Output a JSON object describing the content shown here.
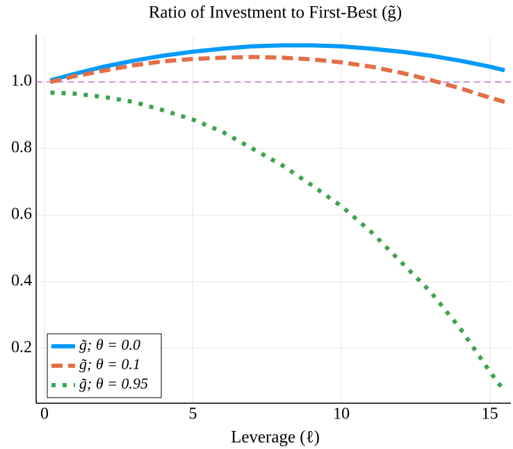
{
  "chart_data": {
    "type": "line",
    "title": "Ratio of Investment to First-Best (g̃)",
    "x_label": "Leverage (ℓ)",
    "x": [
      0.2,
      1,
      2,
      3,
      4,
      5,
      6,
      7,
      8,
      9,
      10,
      11,
      12,
      13,
      14,
      15,
      15.5
    ],
    "series": [
      {
        "name": "g̃; θ = 0.0",
        "color": "#009af9",
        "style": "solid",
        "values": [
          1.005,
          1.024,
          1.046,
          1.064,
          1.079,
          1.091,
          1.1,
          1.107,
          1.11,
          1.11,
          1.107,
          1.1,
          1.091,
          1.079,
          1.064,
          1.046,
          1.035
        ]
      },
      {
        "name": "g̃; θ = 0.1",
        "color": "#e26f46",
        "style": "dashed",
        "values": [
          1.0,
          1.017,
          1.034,
          1.05,
          1.062,
          1.069,
          1.073,
          1.075,
          1.073,
          1.068,
          1.059,
          1.046,
          1.028,
          1.006,
          0.981,
          0.953,
          0.94
        ]
      },
      {
        "name": "g̃; θ = 0.95",
        "color": "#3da44d",
        "style": "dotted",
        "values": [
          0.968,
          0.965,
          0.955,
          0.94,
          0.915,
          0.887,
          0.85,
          0.8,
          0.75,
          0.69,
          0.627,
          0.55,
          0.46,
          0.37,
          0.26,
          0.13,
          0.07
        ]
      }
    ],
    "hline": {
      "value": 1.0,
      "color": "#c271d2"
    },
    "xlim": [
      -0.28,
      15.71
    ],
    "ylim": [
      0.035,
      1.142
    ],
    "xticks": [
      0,
      5,
      10,
      15
    ],
    "yticks": [
      0.2,
      0.4,
      0.6,
      0.8,
      {
        "value": 1.0,
        "label": "1.0"
      }
    ],
    "grid": true,
    "legend": "lower-left"
  }
}
